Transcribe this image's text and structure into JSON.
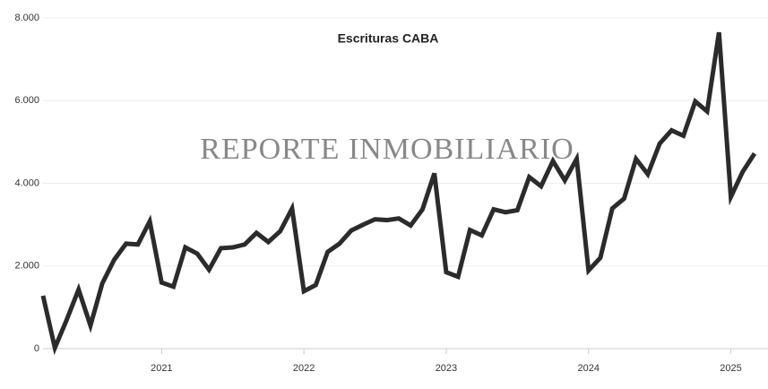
{
  "chart_data": {
    "type": "line",
    "title": "Escrituras CABA",
    "watermark": "REPORTE INMOBILIARIO",
    "categories": [
      null,
      null,
      null,
      null,
      null,
      null,
      null,
      null,
      null,
      null,
      "2021",
      null,
      null,
      null,
      null,
      null,
      null,
      null,
      null,
      null,
      null,
      null,
      "2022",
      null,
      null,
      null,
      null,
      null,
      null,
      null,
      null,
      null,
      null,
      null,
      "2023",
      null,
      null,
      null,
      null,
      null,
      null,
      null,
      null,
      null,
      null,
      null,
      "2024",
      null,
      null,
      null,
      null,
      null,
      null,
      null,
      null,
      null,
      null,
      null,
      "2025",
      null,
      null
    ],
    "series": [
      {
        "name": "Escrituras",
        "color": "#2b2b2b",
        "values": [
          1280,
          20,
          700,
          1430,
          560,
          1580,
          2150,
          2540,
          2520,
          3080,
          1600,
          1500,
          2450,
          2300,
          1910,
          2430,
          2450,
          2520,
          2800,
          2580,
          2840,
          3390,
          1390,
          1540,
          2340,
          2540,
          2860,
          3000,
          3130,
          3110,
          3150,
          2980,
          3370,
          4240,
          1850,
          1740,
          2870,
          2740,
          3370,
          3300,
          3350,
          4150,
          3930,
          4540,
          4070,
          4590,
          1890,
          2200,
          3390,
          3630,
          4590,
          4220,
          4960,
          5280,
          5150,
          5980,
          5740,
          7650,
          3670,
          4280,
          4720
        ]
      }
    ],
    "ylim": [
      0,
      8000
    ],
    "yticks": [
      0,
      {
        "value": 2000,
        "label": "2.000"
      },
      {
        "value": 4000,
        "label": "4.000"
      },
      {
        "value": 6000,
        "label": "6.000"
      },
      {
        "value": 8000,
        "label": "8.000"
      }
    ],
    "grid": true
  }
}
